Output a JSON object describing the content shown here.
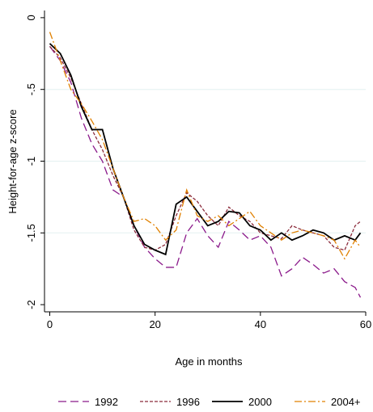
{
  "chart_data": {
    "type": "line",
    "x_label": "Age in months",
    "y_label": "Height-for-age z-score",
    "x": [
      0,
      2,
      4,
      6,
      8,
      10,
      12,
      14,
      16,
      18,
      20,
      22,
      24,
      26,
      28,
      30,
      32,
      34,
      36,
      38,
      40,
      42,
      44,
      46,
      48,
      50,
      52,
      54,
      56,
      58,
      59
    ],
    "series": [
      {
        "name": "1992",
        "color": "#8b1a8b",
        "dash": "long",
        "values": [
          -0.2,
          -0.3,
          -0.45,
          -0.7,
          -0.88,
          -1.0,
          -1.2,
          -1.25,
          -1.45,
          -1.6,
          -1.68,
          -1.74,
          -1.74,
          -1.5,
          -1.4,
          -1.52,
          -1.6,
          -1.42,
          -1.48,
          -1.55,
          -1.52,
          -1.6,
          -1.8,
          -1.75,
          -1.67,
          -1.72,
          -1.78,
          -1.75,
          -1.84,
          -1.88,
          -1.95
        ]
      },
      {
        "name": "1996",
        "color": "#8b2b3b",
        "dash": "short",
        "values": [
          -0.2,
          -0.28,
          -0.42,
          -0.6,
          -0.78,
          -0.92,
          -1.1,
          -1.25,
          -1.48,
          -1.6,
          -1.62,
          -1.58,
          -1.38,
          -1.22,
          -1.28,
          -1.38,
          -1.45,
          -1.32,
          -1.38,
          -1.42,
          -1.5,
          -1.52,
          -1.54,
          -1.45,
          -1.48,
          -1.5,
          -1.52,
          -1.6,
          -1.62,
          -1.45,
          -1.42
        ]
      },
      {
        "name": "2000",
        "color": "#000000",
        "dash": "solid",
        "values": [
          -0.18,
          -0.25,
          -0.4,
          -0.62,
          -0.78,
          -0.78,
          -1.05,
          -1.25,
          -1.45,
          -1.58,
          -1.62,
          -1.65,
          -1.3,
          -1.25,
          -1.35,
          -1.45,
          -1.42,
          -1.35,
          -1.36,
          -1.45,
          -1.48,
          -1.55,
          -1.5,
          -1.55,
          -1.52,
          -1.48,
          -1.5,
          -1.55,
          -1.52,
          -1.55,
          -1.5
        ]
      },
      {
        "name": "2004+",
        "color": "#e08000",
        "dash": "dashdot",
        "values": [
          -0.1,
          -0.3,
          -0.5,
          -0.6,
          -0.72,
          -0.85,
          -1.05,
          -1.25,
          -1.42,
          -1.4,
          -1.45,
          -1.55,
          -1.48,
          -1.2,
          -1.38,
          -1.42,
          -1.38,
          -1.45,
          -1.4,
          -1.35,
          -1.45,
          -1.5,
          -1.55,
          -1.5,
          -1.48,
          -1.5,
          -1.52,
          -1.55,
          -1.68,
          -1.55,
          -1.6
        ]
      }
    ],
    "xlim": [
      -1,
      60
    ],
    "ylim": [
      -2.05,
      0.05
    ],
    "xticks": [
      0,
      20,
      40,
      60
    ],
    "yticks": [
      0,
      {
        "value": -0.5,
        "label": "-.5"
      },
      -1,
      {
        "value": -1.5,
        "label": "-1.5"
      },
      -2
    ],
    "grid": true,
    "legend": "bottom"
  }
}
